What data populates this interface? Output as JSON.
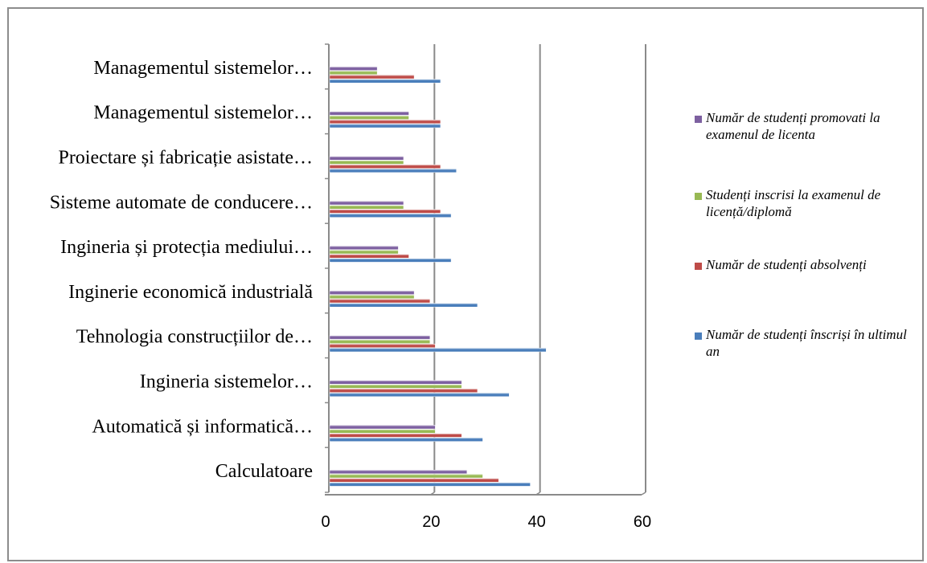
{
  "chart_data": {
    "type": "bar",
    "orientation": "horizontal",
    "categories": [
      "Calculatoare",
      "Automatică și informatică…",
      "Ingineria sistemelor…",
      "Tehnologia construcțiilor de…",
      "Inginerie economică industrială",
      "Ingineria și protecția mediului…",
      "Sisteme automate de conducere…",
      "Proiectare și fabricație asistate…",
      "Managementul sistemelor…",
      "Managementul sistemelor…"
    ],
    "series": [
      {
        "name": "Număr de studenți înscriși în ultimul an",
        "color": "#4a7ebb",
        "values": [
          38,
          29,
          34,
          41,
          28,
          23,
          23,
          24,
          21,
          21
        ]
      },
      {
        "name": "Număr de studenți absolvenți",
        "color": "#be4b48",
        "values": [
          32,
          25,
          28,
          20,
          19,
          15,
          21,
          21,
          21,
          16
        ]
      },
      {
        "name": "Studenți inscrisi la examenul de licență/diplomă",
        "color": "#98b954",
        "values": [
          29,
          20,
          25,
          19,
          16,
          13,
          14,
          14,
          15,
          9
        ]
      },
      {
        "name": "Număr de studenți promovati la examenul de licenta",
        "color": "#7d60a0",
        "values": [
          26,
          20,
          25,
          19,
          16,
          13,
          14,
          14,
          15,
          9
        ]
      }
    ],
    "xlim": [
      0,
      60
    ],
    "xticks": [
      0,
      20,
      40,
      60
    ],
    "grid": "vertical major gridlines",
    "legend_position": "right",
    "title": "",
    "xlabel": "",
    "ylabel": ""
  },
  "legend": {
    "items": [
      {
        "label": "Număr de studenți promovati la examenul de licenta",
        "color": "#7d60a0"
      },
      {
        "label": "Studenți inscrisi la examenul de licență/diplomă",
        "color": "#98b954"
      },
      {
        "label": "Număr de studenți absolvenți",
        "color": "#be4b48"
      },
      {
        "label": "Număr de studenți înscriși în ultimul an",
        "color": "#4a7ebb"
      }
    ]
  }
}
